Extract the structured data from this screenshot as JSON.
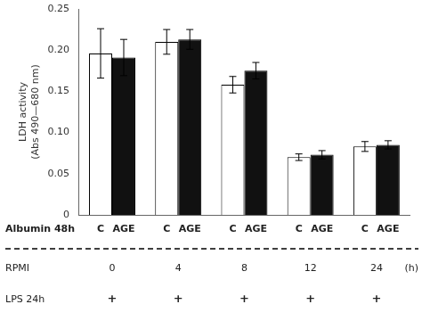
{
  "chart_data": {
    "type": "bar",
    "categories": [
      "0",
      "4",
      "8",
      "12",
      "24"
    ],
    "series": [
      {
        "name": "C",
        "color": "#ffffff",
        "values": [
          0.196,
          0.21,
          0.158,
          0.07,
          0.083
        ],
        "errors": [
          0.03,
          0.015,
          0.01,
          0.004,
          0.006
        ]
      },
      {
        "name": "AGE",
        "color": "#111111",
        "values": [
          0.191,
          0.213,
          0.175,
          0.073,
          0.085
        ],
        "errors": [
          0.022,
          0.012,
          0.01,
          0.005,
          0.005
        ]
      }
    ],
    "ylabel": "LDH activity\n(Abs 490—680 nm)",
    "ylim": [
      0,
      0.25
    ],
    "yticks": [
      0,
      0.05,
      {
        "value": 0.1,
        "label": "0.10"
      },
      0.15,
      {
        "value": 0.2,
        "label": "0.20"
      },
      0.25
    ],
    "grid": false,
    "tick_labels": "y",
    "annotations": [
      {
        "text": "Albumin 48h"
      },
      {
        "text": "RPMI",
        "end_text": "(h)"
      },
      {
        "text": "LPS 24h",
        "labels": [
          "+",
          "+",
          "+",
          "+",
          "+"
        ]
      }
    ]
  }
}
